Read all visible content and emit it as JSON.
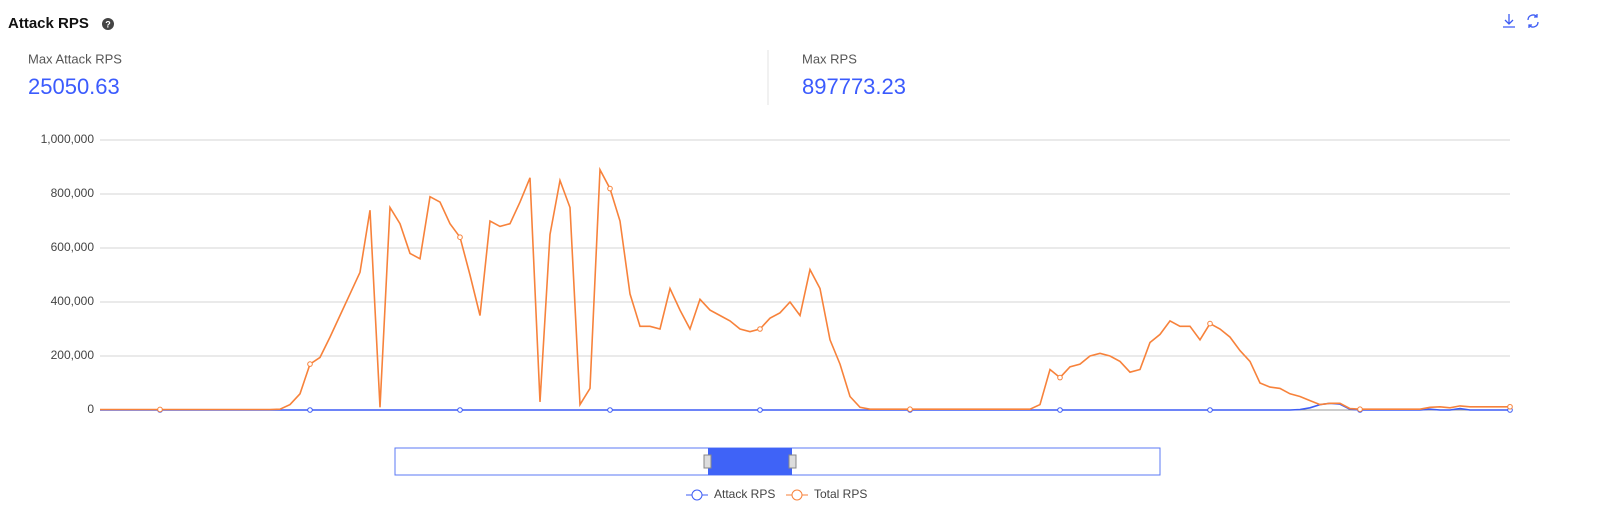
{
  "header": {
    "title": "Attack RPS"
  },
  "stats": [
    {
      "label": "Max Attack RPS",
      "value": 25050.63
    },
    {
      "label": "Max RPS",
      "value": 897773.23
    }
  ],
  "chart_data": {
    "type": "line",
    "categories": [
      null,
      null,
      null,
      null,
      null,
      null,
      null,
      null,
      null,
      null,
      null,
      null,
      null,
      null,
      null,
      null,
      null,
      null,
      null,
      null,
      null,
      null,
      null,
      null,
      null,
      null,
      null,
      null,
      null,
      null,
      null,
      null,
      null,
      null,
      null,
      null,
      null,
      null,
      null,
      null,
      null,
      null,
      null,
      null,
      null,
      null,
      null,
      null,
      null,
      null,
      null,
      null,
      null,
      null,
      null,
      null,
      null,
      null,
      null,
      null,
      null,
      null,
      null,
      null,
      null,
      null,
      null,
      null,
      null,
      null,
      null,
      null,
      null,
      null,
      null,
      null,
      null,
      null,
      null,
      null,
      null,
      null,
      null,
      null,
      null,
      null,
      null,
      null,
      null,
      null,
      null,
      null,
      null,
      null,
      null,
      null,
      null,
      null,
      null,
      null,
      null,
      null,
      null,
      null,
      null,
      null,
      null,
      null,
      null,
      null,
      null,
      null,
      null,
      null,
      null,
      null,
      null,
      null,
      null,
      null,
      null,
      null,
      null,
      null,
      null,
      null,
      null,
      null,
      null,
      null,
      null,
      null,
      null,
      null,
      null,
      null,
      null,
      null,
      null,
      null,
      null,
      null
    ],
    "series": [
      {
        "name": "Attack RPS",
        "color": "#3d5cf5",
        "values": [
          0,
          0,
          0,
          0,
          0,
          0,
          0,
          0,
          0,
          0,
          0,
          0,
          0,
          0,
          0,
          0,
          0,
          0,
          0,
          0,
          0,
          0,
          0,
          0,
          0,
          0,
          0,
          0,
          0,
          0,
          0,
          0,
          0,
          0,
          0,
          0,
          0,
          0,
          0,
          0,
          0,
          0,
          0,
          0,
          0,
          0,
          0,
          0,
          0,
          0,
          0,
          0,
          0,
          0,
          0,
          0,
          0,
          0,
          0,
          0,
          0,
          0,
          0,
          0,
          0,
          0,
          0,
          0,
          0,
          0,
          0,
          0,
          0,
          0,
          0,
          0,
          0,
          0,
          0,
          0,
          0,
          0,
          0,
          0,
          0,
          0,
          0,
          0,
          0,
          0,
          0,
          0,
          0,
          0,
          0,
          0,
          0,
          0,
          0,
          0,
          0,
          0,
          0,
          0,
          0,
          0,
          0,
          0,
          0,
          0,
          0,
          0,
          0,
          0,
          0,
          0,
          0,
          0,
          0,
          0,
          2000,
          8000,
          20000,
          25000,
          22000,
          3000,
          0,
          0,
          0,
          0,
          0,
          0,
          0,
          3000,
          0,
          0,
          5000,
          0,
          0,
          0,
          0,
          0
        ]
      },
      {
        "name": "Total RPS",
        "color": "#f7823b",
        "values": [
          2000,
          2000,
          2000,
          2000,
          2000,
          2000,
          2000,
          2000,
          2000,
          2000,
          2000,
          2000,
          2000,
          2000,
          2000,
          2000,
          2000,
          2000,
          3000,
          20000,
          60000,
          170000,
          195000,
          270000,
          350000,
          430000,
          510000,
          740000,
          10000,
          750000,
          690000,
          580000,
          560000,
          790000,
          770000,
          690000,
          640000,
          500000,
          350000,
          700000,
          680000,
          690000,
          770000,
          860000,
          30000,
          650000,
          850000,
          750000,
          20000,
          80000,
          890000,
          820000,
          700000,
          430000,
          310000,
          310000,
          300000,
          450000,
          370000,
          300000,
          410000,
          370000,
          350000,
          330000,
          300000,
          290000,
          300000,
          340000,
          360000,
          400000,
          350000,
          520000,
          450000,
          260000,
          170000,
          50000,
          10000,
          3000,
          3000,
          3000,
          3000,
          3000,
          3000,
          3000,
          3000,
          3000,
          3000,
          3000,
          3000,
          3000,
          3000,
          3000,
          3000,
          3000,
          20000,
          150000,
          120000,
          160000,
          170000,
          200000,
          210000,
          200000,
          180000,
          140000,
          150000,
          250000,
          280000,
          330000,
          310000,
          310000,
          260000,
          320000,
          300000,
          270000,
          220000,
          180000,
          100000,
          85000,
          80000,
          60000,
          50000,
          35000,
          20000,
          25000,
          25000,
          5000,
          3000,
          3000,
          3000,
          3000,
          3000,
          3000,
          3000,
          10000,
          12000,
          8000,
          15000,
          12000,
          12000,
          12000,
          12000,
          12000
        ]
      }
    ],
    "ylim": [
      0,
      1000000
    ],
    "yticks": [
      0,
      {
        "value": 200000,
        "label": "200,000"
      },
      {
        "value": 400000,
        "label": "400,000"
      },
      {
        "value": 600000,
        "label": "600,000"
      },
      {
        "value": 800000,
        "label": "800,000"
      },
      {
        "value": 1000000,
        "label": "1,000,000"
      }
    ],
    "grid": true
  }
}
